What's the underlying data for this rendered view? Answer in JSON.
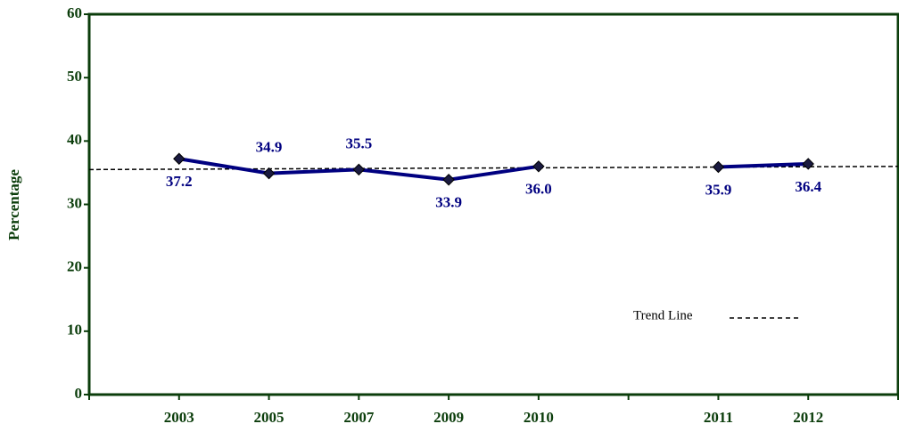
{
  "chart_data": {
    "type": "line",
    "y_label": "Percentage",
    "categories": [
      null,
      "2003",
      "2005",
      "2007",
      "2009",
      "2010",
      null,
      "2011",
      "2012",
      null
    ],
    "series": [
      {
        "name": "Percentage",
        "color": "#000080",
        "values": [
          null,
          37.2,
          34.9,
          35.5,
          33.9,
          36.0,
          null,
          35.9,
          36.4,
          null
        ],
        "value_labels": [
          null,
          "37.2",
          "34.9",
          "35.5",
          "33.9",
          "36.0",
          null,
          "35.9",
          "36.4",
          null
        ]
      }
    ],
    "trend": {
      "label": "Trend Line",
      "start": 35.5,
      "end": 36.0,
      "color": "#000000"
    },
    "ylim": [
      0,
      60
    ],
    "yticks": [
      0,
      10,
      20,
      30,
      40,
      50,
      60
    ],
    "axis_color": "#0b3d0b"
  }
}
